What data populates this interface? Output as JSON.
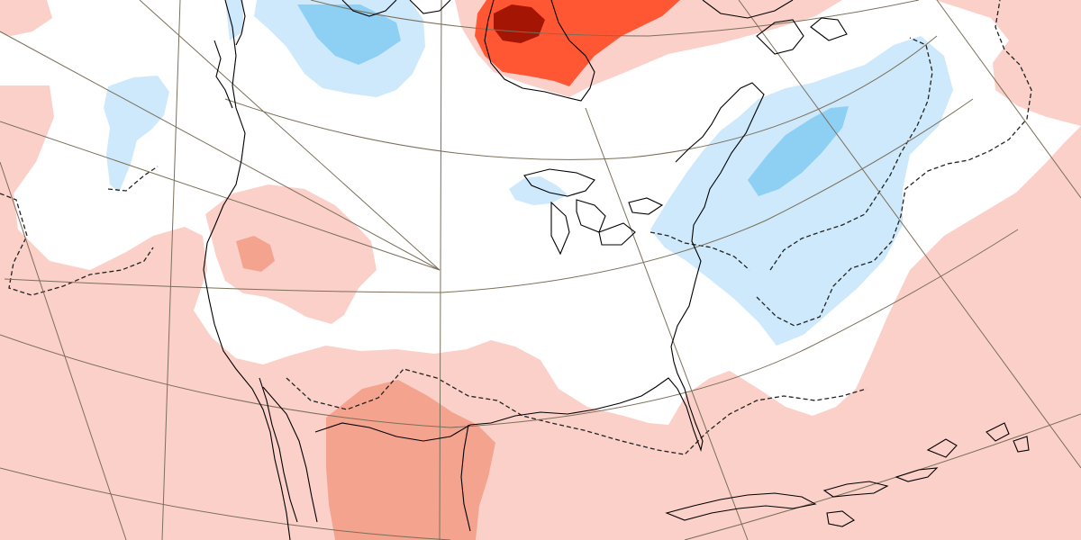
{
  "map": {
    "projection": "polar-stereographic",
    "region": "north-america",
    "field": "anomaly",
    "colors": {
      "background": "#ffffff",
      "warm_light": "#fbd0c9",
      "warm_medium": "#f4a38f",
      "warm_strong": "#ff5733",
      "warm_extreme": "#a51504",
      "cold_light": "#cde9fb",
      "cold_medium": "#8ecff4",
      "coastline": "#000000",
      "graticule": "#7b6f5a",
      "zero_contour": "#222222"
    },
    "layers": {
      "graticule": true,
      "coastlines": true,
      "dashed_contours": true
    }
  }
}
